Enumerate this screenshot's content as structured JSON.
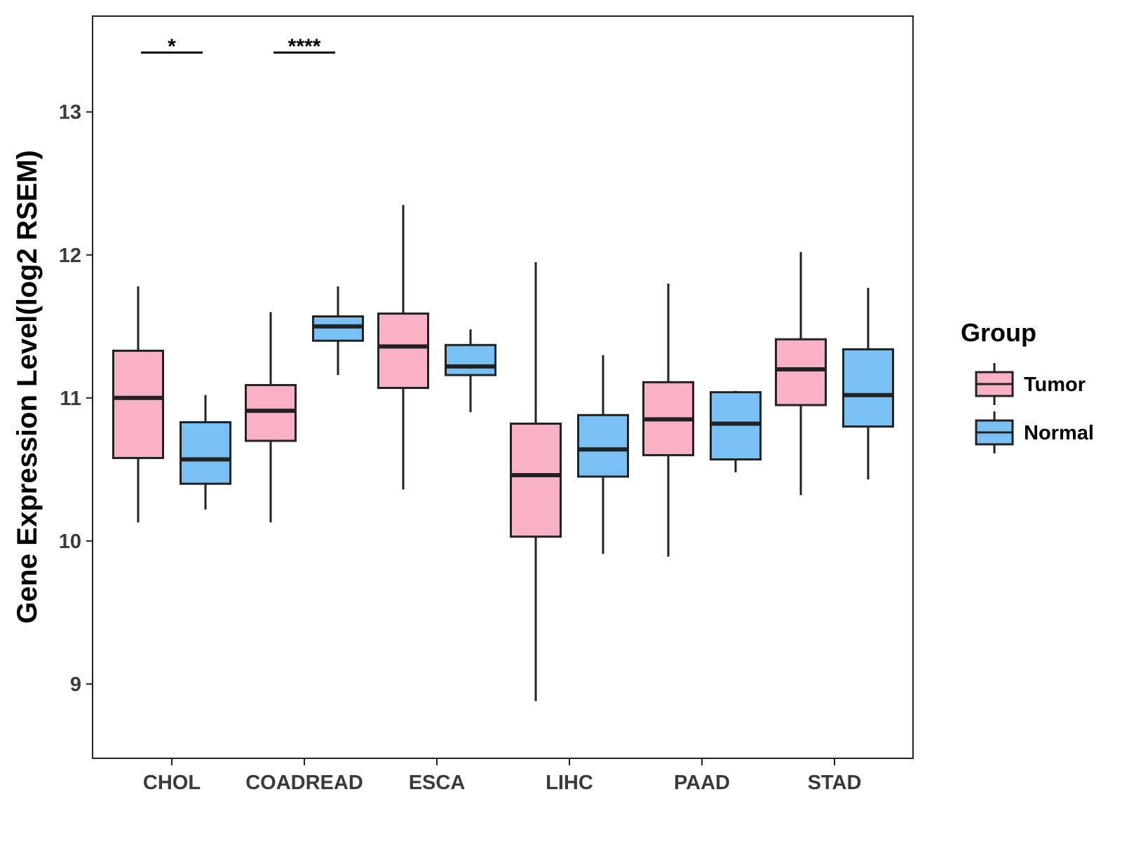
{
  "chart_data": {
    "type": "boxplot",
    "title": "",
    "xlabel": "",
    "ylabel": "Gene Expression Level(log2 RSEM)",
    "ylim": [
      8.48,
      13.67
    ],
    "yticks": [
      9,
      10,
      11,
      12,
      13
    ],
    "ytick_labels": [
      "9",
      "10",
      "11",
      "12",
      "13"
    ],
    "categories": [
      "CHOL",
      "COADREAD",
      "ESCA",
      "LIHC",
      "PAAD",
      "STAD"
    ],
    "legend": {
      "title": "Group",
      "position": "right",
      "entries": [
        "Tumor",
        "Normal"
      ]
    },
    "colors": {
      "Tumor": "#f9b1c3",
      "Normal": "#79c0f5",
      "outline": "#222222"
    },
    "series": [
      {
        "name": "Tumor",
        "boxes": [
          {
            "whisker_low": 10.13,
            "q1": 10.58,
            "median": 11.0,
            "q3": 11.33,
            "whisker_high": 11.78
          },
          {
            "whisker_low": 10.13,
            "q1": 10.7,
            "median": 10.91,
            "q3": 11.09,
            "whisker_high": 11.6
          },
          {
            "whisker_low": 10.36,
            "q1": 11.07,
            "median": 11.36,
            "q3": 11.59,
            "whisker_high": 12.35
          },
          {
            "whisker_low": 8.88,
            "q1": 10.03,
            "median": 10.46,
            "q3": 10.82,
            "whisker_high": 11.95
          },
          {
            "whisker_low": 9.89,
            "q1": 10.6,
            "median": 10.85,
            "q3": 11.11,
            "whisker_high": 11.8
          },
          {
            "whisker_low": 10.32,
            "q1": 10.95,
            "median": 11.2,
            "q3": 11.41,
            "whisker_high": 12.02
          }
        ]
      },
      {
        "name": "Normal",
        "boxes": [
          {
            "whisker_low": 10.22,
            "q1": 10.4,
            "median": 10.57,
            "q3": 10.83,
            "whisker_high": 11.02
          },
          {
            "whisker_low": 11.16,
            "q1": 11.4,
            "median": 11.5,
            "q3": 11.57,
            "whisker_high": 11.78
          },
          {
            "whisker_low": 10.9,
            "q1": 11.16,
            "median": 11.22,
            "q3": 11.37,
            "whisker_high": 11.48
          },
          {
            "whisker_low": 9.91,
            "q1": 10.45,
            "median": 10.64,
            "q3": 10.88,
            "whisker_high": 11.3
          },
          {
            "whisker_low": 10.48,
            "q1": 10.57,
            "median": 10.82,
            "q3": 11.04,
            "whisker_high": 11.05
          },
          {
            "whisker_low": 10.43,
            "q1": 10.8,
            "median": 11.02,
            "q3": 11.34,
            "whisker_high": 11.77
          }
        ]
      }
    ],
    "annotations": [
      {
        "category": "CHOL",
        "text": "*"
      },
      {
        "category": "COADREAD",
        "text": "****"
      }
    ]
  }
}
